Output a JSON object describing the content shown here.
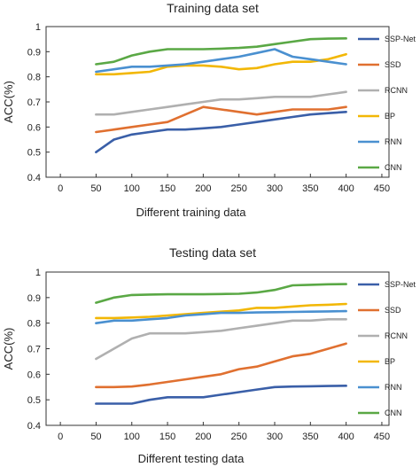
{
  "chart_data": [
    {
      "type": "line",
      "title": "Training data set",
      "xlabel": "Different training data",
      "ylabel": "ACC(%)",
      "xlim": [
        -20,
        460
      ],
      "ylim": [
        0.4,
        1.0
      ],
      "xticks": [
        0,
        50,
        100,
        150,
        200,
        250,
        300,
        350,
        400,
        450
      ],
      "yticks": [
        0.4,
        0.5,
        0.6,
        0.7,
        0.8,
        0.9,
        1
      ],
      "grid": false,
      "legend_position": "right",
      "x": [
        50,
        75,
        100,
        125,
        150,
        175,
        200,
        225,
        250,
        275,
        300,
        325,
        350,
        375,
        400
      ],
      "series": [
        {
          "name": "SSP-Net",
          "color": "#3a5fa8",
          "values": [
            0.5,
            0.55,
            0.57,
            0.58,
            0.59,
            0.59,
            0.595,
            0.6,
            0.61,
            0.62,
            0.63,
            0.64,
            0.65,
            0.655,
            0.66
          ]
        },
        {
          "name": "SSD",
          "color": "#e07030",
          "values": [
            0.58,
            0.59,
            0.6,
            0.61,
            0.62,
            0.65,
            0.68,
            0.67,
            0.66,
            0.65,
            0.66,
            0.67,
            0.67,
            0.67,
            0.68
          ]
        },
        {
          "name": "RCNN",
          "color": "#b0b0b0",
          "values": [
            0.65,
            0.65,
            0.66,
            0.67,
            0.68,
            0.69,
            0.7,
            0.71,
            0.71,
            0.715,
            0.72,
            0.72,
            0.72,
            0.73,
            0.74
          ]
        },
        {
          "name": "BP",
          "color": "#f2b705",
          "values": [
            0.81,
            0.81,
            0.815,
            0.82,
            0.84,
            0.845,
            0.845,
            0.84,
            0.83,
            0.835,
            0.85,
            0.86,
            0.86,
            0.87,
            0.89
          ]
        },
        {
          "name": "RNN",
          "color": "#4a90d0",
          "values": [
            0.82,
            0.83,
            0.84,
            0.84,
            0.845,
            0.85,
            0.86,
            0.87,
            0.88,
            0.895,
            0.91,
            0.88,
            0.87,
            0.86,
            0.85
          ]
        },
        {
          "name": "CNN",
          "color": "#5aa845",
          "values": [
            0.85,
            0.86,
            0.885,
            0.9,
            0.91,
            0.91,
            0.91,
            0.912,
            0.915,
            0.92,
            0.93,
            0.94,
            0.95,
            0.952,
            0.953
          ]
        }
      ]
    },
    {
      "type": "line",
      "title": "Testing data set",
      "xlabel": "Different testing data",
      "ylabel": "ACC(%)",
      "xlim": [
        -20,
        460
      ],
      "ylim": [
        0.4,
        1.0
      ],
      "xticks": [
        0,
        50,
        100,
        150,
        200,
        250,
        300,
        350,
        400,
        450
      ],
      "yticks": [
        0.4,
        0.5,
        0.6,
        0.7,
        0.8,
        0.9,
        1
      ],
      "grid": false,
      "legend_position": "right",
      "x": [
        50,
        75,
        100,
        125,
        150,
        175,
        200,
        225,
        250,
        275,
        300,
        325,
        350,
        375,
        400
      ],
      "series": [
        {
          "name": "SSP-Net",
          "color": "#3a5fa8",
          "values": [
            0.485,
            0.485,
            0.485,
            0.5,
            0.51,
            0.51,
            0.51,
            0.52,
            0.53,
            0.54,
            0.55,
            0.552,
            0.553,
            0.554,
            0.555
          ]
        },
        {
          "name": "SSD",
          "color": "#e07030",
          "values": [
            0.55,
            0.55,
            0.552,
            0.56,
            0.57,
            0.58,
            0.59,
            0.6,
            0.62,
            0.63,
            0.65,
            0.67,
            0.68,
            0.7,
            0.72
          ]
        },
        {
          "name": "RCNN",
          "color": "#b0b0b0",
          "values": [
            0.66,
            0.7,
            0.74,
            0.76,
            0.76,
            0.76,
            0.765,
            0.77,
            0.78,
            0.79,
            0.8,
            0.81,
            0.81,
            0.815,
            0.815
          ]
        },
        {
          "name": "BP",
          "color": "#f2b705",
          "values": [
            0.82,
            0.82,
            0.822,
            0.825,
            0.83,
            0.835,
            0.84,
            0.845,
            0.85,
            0.86,
            0.86,
            0.865,
            0.87,
            0.872,
            0.875
          ]
        },
        {
          "name": "RNN",
          "color": "#4a90d0",
          "values": [
            0.8,
            0.81,
            0.81,
            0.815,
            0.82,
            0.83,
            0.835,
            0.84,
            0.84,
            0.842,
            0.843,
            0.844,
            0.845,
            0.846,
            0.847
          ]
        },
        {
          "name": "CNN",
          "color": "#5aa845",
          "values": [
            0.88,
            0.9,
            0.91,
            0.912,
            0.913,
            0.913,
            0.913,
            0.914,
            0.915,
            0.92,
            0.93,
            0.948,
            0.95,
            0.952,
            0.953
          ]
        }
      ]
    }
  ]
}
